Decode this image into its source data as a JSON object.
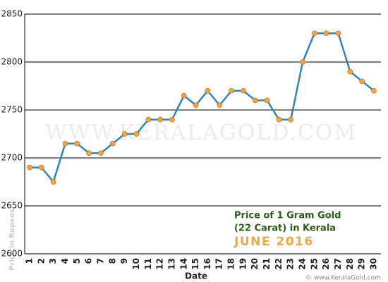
{
  "chart_data": {
    "type": "line",
    "title_lines": [
      "Price of 1 Gram Gold",
      "(22 Carat) in Kerala"
    ],
    "subtitle": "JUNE 2016",
    "x_label": "Date",
    "y_label": "Price in Rupees",
    "watermark": "WWW.KERALAGOLD.COM",
    "footer": "© www.KeralaGold.com",
    "categories": [
      "1",
      "2",
      "3",
      "4",
      "5",
      "6",
      "7",
      "8",
      "9",
      "10",
      "11",
      "12",
      "13",
      "14",
      "15",
      "16",
      "17",
      "18",
      "19",
      "20",
      "21",
      "22",
      "23",
      "24",
      "25",
      "26",
      "27",
      "28",
      "29",
      "30"
    ],
    "values": [
      2690,
      2690,
      2675,
      2715,
      2715,
      2705,
      2705,
      2715,
      2725,
      2725,
      2740,
      2740,
      2740,
      2765,
      2755,
      2770,
      2755,
      2770,
      2770,
      2760,
      2760,
      2740,
      2740,
      2800,
      2830,
      2830,
      2830,
      2790,
      2780,
      2770
    ],
    "line_color": "#2f86b8",
    "marker_color": "#f5a442",
    "ylim": [
      2600,
      2850
    ],
    "yticks": [
      2600,
      2650,
      2700,
      2750,
      2800,
      2850
    ],
    "grid": true
  }
}
